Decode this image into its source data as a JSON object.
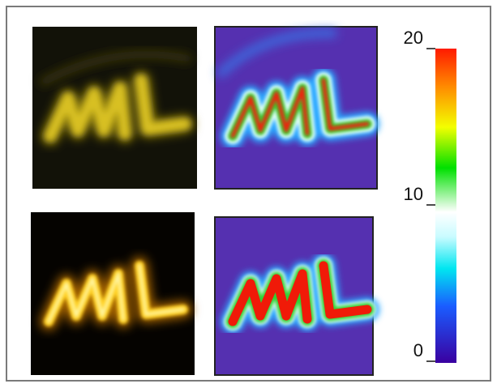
{
  "colorbar": {
    "range": [
      0,
      20
    ],
    "ticks": [
      0,
      10,
      20
    ]
  }
}
